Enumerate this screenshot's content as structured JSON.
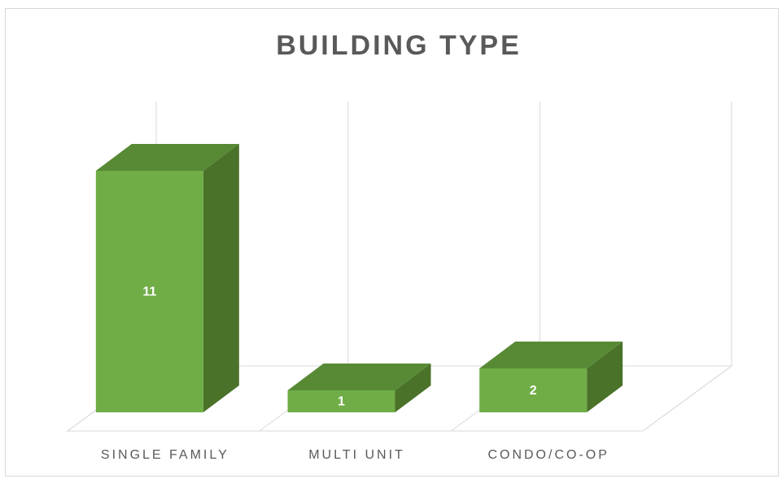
{
  "chart_data": {
    "type": "bar3d",
    "title": "BUILDING TYPE",
    "categories": [
      "SINGLE FAMILY",
      "MULTI UNIT",
      "CONDO/CO-OP"
    ],
    "values": [
      11,
      1,
      2
    ],
    "color": "#70ad47"
  }
}
